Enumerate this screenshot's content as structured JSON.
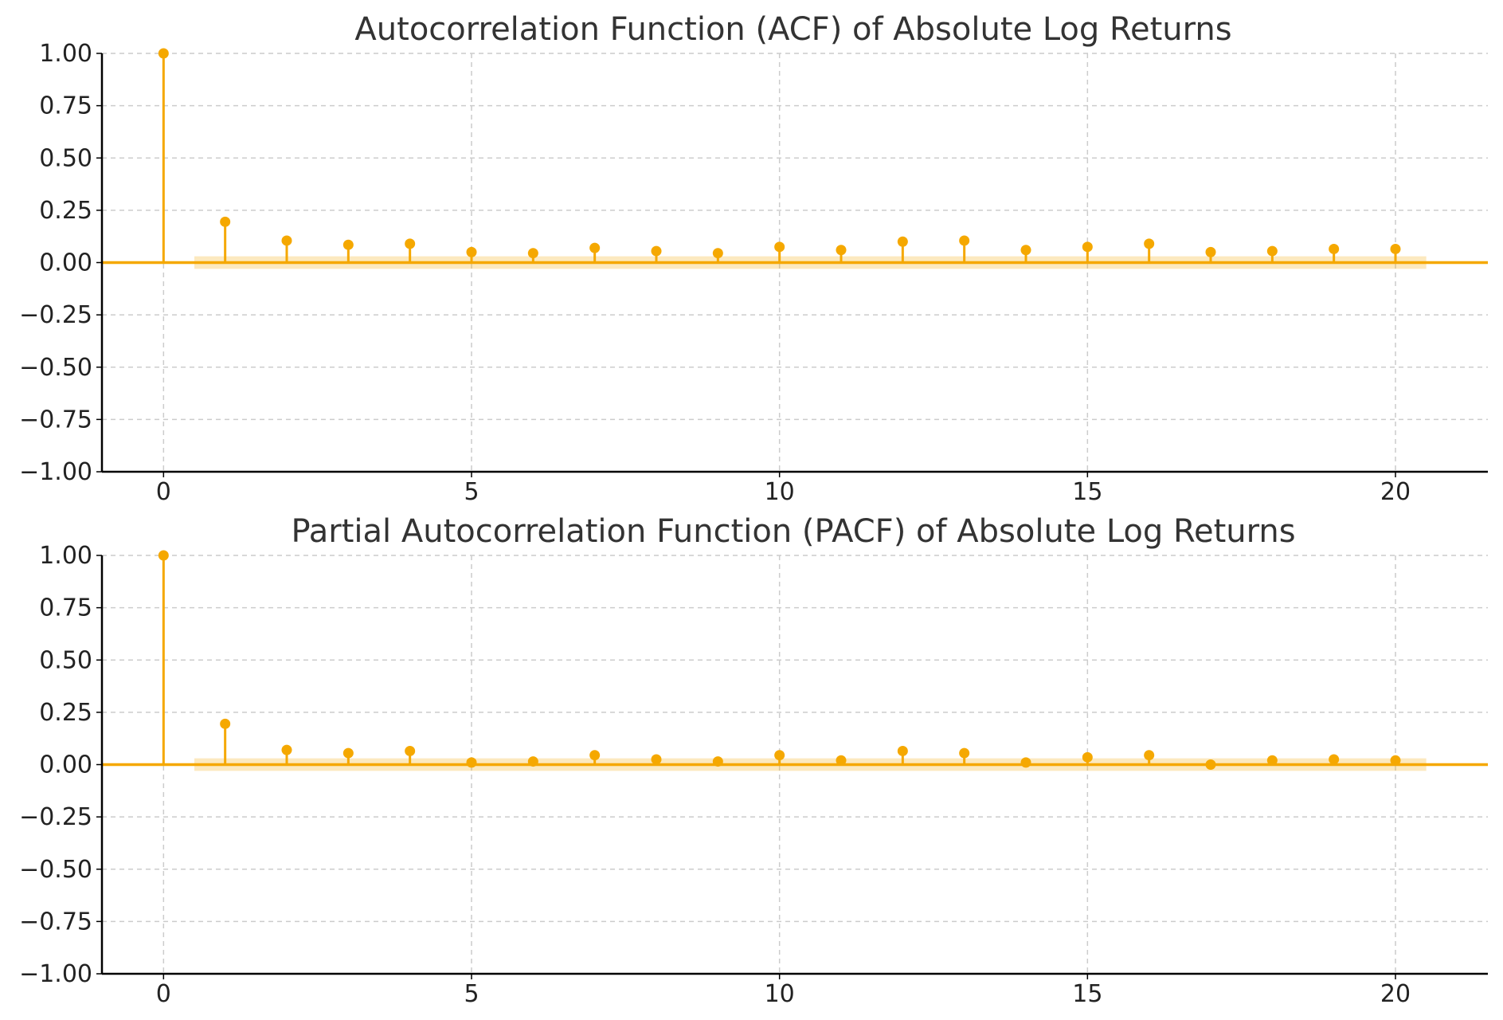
{
  "colors": {
    "stem": "#F5A800",
    "band": "#F5A800",
    "grid": "#cccccc"
  },
  "chart_data": [
    {
      "type": "stem",
      "title": "Autocorrelation Function (ACF) of Absolute Log Returns",
      "xlim": [
        -1,
        21.5
      ],
      "ylim": [
        -1.0,
        1.0
      ],
      "xticks": [
        0,
        5,
        10,
        15,
        20
      ],
      "xtick_labels": [
        "0",
        "5",
        "10",
        "15",
        "20"
      ],
      "yticks": [
        1.0,
        0.75,
        0.5,
        0.25,
        0.0,
        -0.25,
        -0.5,
        -0.75,
        -1.0
      ],
      "ytick_labels": [
        "1.00",
        "0.75",
        "0.50",
        "0.25",
        "0.00",
        "−0.25",
        "−0.50",
        "−0.75",
        "−1.00"
      ],
      "grid": true,
      "confidence_band": {
        "from_lag": 0.5,
        "to_lag": 20.5,
        "lower": -0.03,
        "upper": 0.03
      },
      "lags": [
        0,
        1,
        2,
        3,
        4,
        5,
        6,
        7,
        8,
        9,
        10,
        11,
        12,
        13,
        14,
        15,
        16,
        17,
        18,
        19,
        20
      ],
      "values": [
        1.0,
        0.195,
        0.105,
        0.085,
        0.09,
        0.05,
        0.045,
        0.07,
        0.055,
        0.045,
        0.075,
        0.06,
        0.1,
        0.105,
        0.06,
        0.075,
        0.09,
        0.05,
        0.055,
        0.065,
        0.065
      ]
    },
    {
      "type": "stem",
      "title": "Partial Autocorrelation Function (PACF) of Absolute Log Returns",
      "xlim": [
        -1,
        21.5
      ],
      "ylim": [
        -1.0,
        1.0
      ],
      "xticks": [
        0,
        5,
        10,
        15,
        20
      ],
      "xtick_labels": [
        "0",
        "5",
        "10",
        "15",
        "20"
      ],
      "yticks": [
        1.0,
        0.75,
        0.5,
        0.25,
        0.0,
        -0.25,
        -0.5,
        -0.75,
        -1.0
      ],
      "ytick_labels": [
        "1.00",
        "0.75",
        "0.50",
        "0.25",
        "0.00",
        "−0.25",
        "−0.50",
        "−0.75",
        "−1.00"
      ],
      "grid": true,
      "confidence_band": {
        "from_lag": 0.5,
        "to_lag": 20.5,
        "lower": -0.03,
        "upper": 0.03
      },
      "lags": [
        0,
        1,
        2,
        3,
        4,
        5,
        6,
        7,
        8,
        9,
        10,
        11,
        12,
        13,
        14,
        15,
        16,
        17,
        18,
        19,
        20
      ],
      "values": [
        1.0,
        0.195,
        0.07,
        0.055,
        0.065,
        0.01,
        0.015,
        0.045,
        0.025,
        0.015,
        0.045,
        0.02,
        0.065,
        0.055,
        0.01,
        0.035,
        0.045,
        0.0,
        0.02,
        0.025,
        0.02
      ]
    }
  ]
}
